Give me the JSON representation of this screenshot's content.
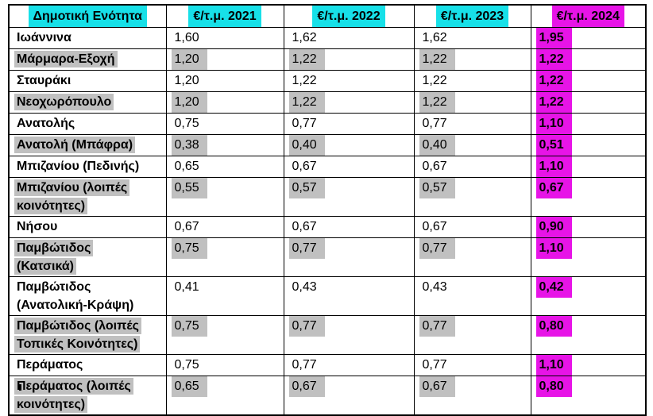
{
  "colors": {
    "header_highlight": "#17E0E8",
    "header_2024_highlight": "#E714E7",
    "alt_row_highlight": "#C0C0C0",
    "value_2024_highlight": "#E714E7",
    "border": "#000000",
    "text": "#000000",
    "background": "#FFFFFF"
  },
  "table": {
    "headers": [
      {
        "label": "Δημοτική Ενότητα",
        "highlight": "cyan"
      },
      {
        "label": "€/τ.μ. 2021",
        "highlight": "cyan"
      },
      {
        "label": "€/τ.μ. 2022",
        "highlight": "cyan"
      },
      {
        "label": "€/τ.μ. 2023",
        "highlight": "cyan"
      },
      {
        "label": "€/τ.μ. 2024",
        "highlight": "magenta"
      }
    ],
    "rows": [
      {
        "name": "Ιωάννινα",
        "v2021": "1,60",
        "v2022": "1,62",
        "v2023": "1,62",
        "v2024": "1,95",
        "gray": false
      },
      {
        "name": "Μάρμαρα-Εξοχή",
        "v2021": "1,20",
        "v2022": "1,22",
        "v2023": "1,22",
        "v2024": "1,22",
        "gray": true
      },
      {
        "name": "Σταυράκι",
        "v2021": "1,20",
        "v2022": "1,22",
        "v2023": "1,22",
        "v2024": "1,22",
        "gray": false
      },
      {
        "name": "Νεοχωρόπουλο",
        "v2021": "1,20",
        "v2022": "1,22",
        "v2023": "1,22",
        "v2024": "1,22",
        "gray": true
      },
      {
        "name": "Ανατολής",
        "v2021": "0,75",
        "v2022": "0,77",
        "v2023": "0,77",
        "v2024": "1,10",
        "gray": false
      },
      {
        "name": "Ανατολή (Μπάφρα)",
        "v2021": "0,38",
        "v2022": "0,40",
        "v2023": "0,40",
        "v2024": "0,51",
        "gray": true
      },
      {
        "name": "Μπιζανίου (Πεδινής)",
        "v2021": "0,65",
        "v2022": "0,67",
        "v2023": "0,67",
        "v2024": "1,10",
        "gray": false
      },
      {
        "name": "Μπιζανίου (λοιπές\nκοινότητες)",
        "v2021": "0,55",
        "v2022": "0,57",
        "v2023": "0,57",
        "v2024": "0,67",
        "gray": true
      },
      {
        "name": "Νήσου",
        "v2021": "0,67",
        "v2022": "0,67",
        "v2023": "0,67",
        "v2024": "0,90",
        "gray": false
      },
      {
        "name": "Παμβώτιδος\n(Κατσικά)",
        "v2021": "0,75",
        "v2022": "0,77",
        "v2023": "0,77",
        "v2024": "1,10",
        "gray": true
      },
      {
        "name": "Παμβώτιδος\n(Ανατολική-Κράψη)",
        "v2021": "0,41",
        "v2022": "0,43",
        "v2023": "0,43",
        "v2024": "0,42",
        "gray": false
      },
      {
        "name": "Παμβώτιδος (λοιπές\nΤοπικές Κοινότητες)",
        "v2021": "0,75",
        "v2022": "0,77",
        "v2023": "0,77",
        "v2024": "0,80",
        "gray": true
      },
      {
        "name": "Περάματος",
        "v2021": "0,75",
        "v2022": "0,77",
        "v2023": "0,77",
        "v2024": "1,10",
        "gray": false
      },
      {
        "name": "Περάματος (λοιπές\nκοινότητες)",
        "v2021": "0,65",
        "v2022": "0,67",
        "v2023": "0,67",
        "v2024": "0,80",
        "gray": true
      }
    ]
  }
}
